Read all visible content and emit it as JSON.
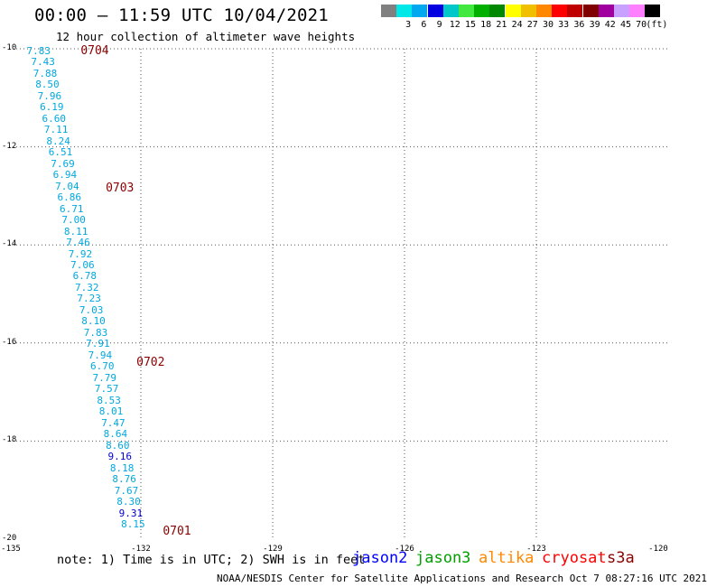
{
  "header": {
    "title": "00:00 – 11:59 UTC 10/04/2021",
    "subtitle": "12 hour collection of altimeter wave heights"
  },
  "legend": {
    "swatches": [
      {
        "color": "#808080",
        "label": ""
      },
      {
        "color": "#00e8e8",
        "label": "3"
      },
      {
        "color": "#00a8f0",
        "label": "6"
      },
      {
        "color": "#0000e0",
        "label": "9"
      },
      {
        "color": "#00c8c8",
        "label": "12"
      },
      {
        "color": "#40e840",
        "label": "15"
      },
      {
        "color": "#00b000",
        "label": "18"
      },
      {
        "color": "#008800",
        "label": "21"
      },
      {
        "color": "#ffff00",
        "label": "24"
      },
      {
        "color": "#f0c000",
        "label": "27"
      },
      {
        "color": "#ff8800",
        "label": "30"
      },
      {
        "color": "#ff0000",
        "label": "33"
      },
      {
        "color": "#c00000",
        "label": "36"
      },
      {
        "color": "#800000",
        "label": "39"
      },
      {
        "color": "#a000a0",
        "label": "42"
      },
      {
        "color": "#c8a0ff",
        "label": "45"
      },
      {
        "color": "#ff80ff",
        "label": "70"
      },
      {
        "color": "#000000",
        "label": "(ft)"
      }
    ]
  },
  "axes": {
    "y_labels": [
      "-10",
      "-12",
      "-14",
      "-16",
      "-18",
      "-20"
    ],
    "x_labels": [
      "-135",
      "-132",
      "-129",
      "-126",
      "-123",
      "-120"
    ]
  },
  "passes": [
    {
      "id": "0704",
      "lat": -10.05,
      "lon": -133.37
    },
    {
      "id": "0703",
      "lat": -12.85,
      "lon": -132.8
    },
    {
      "id": "0702",
      "lat": -16.4,
      "lon": -132.1
    },
    {
      "id": "0701",
      "lat": -19.85,
      "lon": -131.5
    }
  ],
  "measurements": [
    {
      "v": "7.83",
      "lat": -10.05,
      "lon": -134.6,
      "dark": false
    },
    {
      "v": "7.43",
      "lat": -10.28,
      "lon": -134.5,
      "dark": false
    },
    {
      "v": "7.88",
      "lat": -10.51,
      "lon": -134.45,
      "dark": false
    },
    {
      "v": "8.50",
      "lat": -10.74,
      "lon": -134.4,
      "dark": false
    },
    {
      "v": "7.96",
      "lat": -10.97,
      "lon": -134.35,
      "dark": false
    },
    {
      "v": "6.19",
      "lat": -11.2,
      "lon": -134.3,
      "dark": false
    },
    {
      "v": "6.60",
      "lat": -11.43,
      "lon": -134.25,
      "dark": false
    },
    {
      "v": "7.11",
      "lat": -11.66,
      "lon": -134.2,
      "dark": false
    },
    {
      "v": "8.24",
      "lat": -11.89,
      "lon": -134.15,
      "dark": false
    },
    {
      "v": "6.51",
      "lat": -12.12,
      "lon": -134.1,
      "dark": false
    },
    {
      "v": "7.69",
      "lat": -12.35,
      "lon": -134.05,
      "dark": false
    },
    {
      "v": "6.94",
      "lat": -12.58,
      "lon": -134.0,
      "dark": false
    },
    {
      "v": "7.04",
      "lat": -12.81,
      "lon": -133.95,
      "dark": false
    },
    {
      "v": "6.86",
      "lat": -13.04,
      "lon": -133.9,
      "dark": false
    },
    {
      "v": "6.71",
      "lat": -13.27,
      "lon": -133.85,
      "dark": false
    },
    {
      "v": "7.00",
      "lat": -13.5,
      "lon": -133.8,
      "dark": false
    },
    {
      "v": "8.11",
      "lat": -13.73,
      "lon": -133.75,
      "dark": false
    },
    {
      "v": "7.46",
      "lat": -13.96,
      "lon": -133.7,
      "dark": false
    },
    {
      "v": "7.92",
      "lat": -14.19,
      "lon": -133.65,
      "dark": false
    },
    {
      "v": "7.06",
      "lat": -14.42,
      "lon": -133.6,
      "dark": false
    },
    {
      "v": "6.78",
      "lat": -14.65,
      "lon": -133.55,
      "dark": false
    },
    {
      "v": "7.32",
      "lat": -14.88,
      "lon": -133.5,
      "dark": false
    },
    {
      "v": "7.23",
      "lat": -15.11,
      "lon": -133.45,
      "dark": false
    },
    {
      "v": "7.03",
      "lat": -15.34,
      "lon": -133.4,
      "dark": false
    },
    {
      "v": "8.10",
      "lat": -15.57,
      "lon": -133.35,
      "dark": false
    },
    {
      "v": "7.83",
      "lat": -15.8,
      "lon": -133.3,
      "dark": false
    },
    {
      "v": "7.91",
      "lat": -16.03,
      "lon": -133.25,
      "dark": false
    },
    {
      "v": "7.94",
      "lat": -16.26,
      "lon": -133.2,
      "dark": false
    },
    {
      "v": "6.70",
      "lat": -16.49,
      "lon": -133.15,
      "dark": false
    },
    {
      "v": "7.79",
      "lat": -16.72,
      "lon": -133.1,
      "dark": false
    },
    {
      "v": "7.57",
      "lat": -16.95,
      "lon": -133.05,
      "dark": false
    },
    {
      "v": "8.53",
      "lat": -17.18,
      "lon": -133.0,
      "dark": false
    },
    {
      "v": "8.01",
      "lat": -17.41,
      "lon": -132.95,
      "dark": false
    },
    {
      "v": "7.47",
      "lat": -17.64,
      "lon": -132.9,
      "dark": false
    },
    {
      "v": "8.64",
      "lat": -17.87,
      "lon": -132.85,
      "dark": false
    },
    {
      "v": "8.60",
      "lat": -18.1,
      "lon": -132.8,
      "dark": false
    },
    {
      "v": "9.16",
      "lat": -18.33,
      "lon": -132.75,
      "dark": true
    },
    {
      "v": "8.18",
      "lat": -18.56,
      "lon": -132.7,
      "dark": false
    },
    {
      "v": "8.76",
      "lat": -18.79,
      "lon": -132.65,
      "dark": false
    },
    {
      "v": "7.67",
      "lat": -19.02,
      "lon": -132.6,
      "dark": false
    },
    {
      "v": "8.30",
      "lat": -19.25,
      "lon": -132.55,
      "dark": false
    },
    {
      "v": "9.31",
      "lat": -19.48,
      "lon": -132.5,
      "dark": true
    },
    {
      "v": "8.15",
      "lat": -19.71,
      "lon": -132.45,
      "dark": false
    }
  ],
  "footer": {
    "note": "note: 1) Time is in UTC; 2) SWH is in feet",
    "satellites": [
      {
        "name": "jason2",
        "color": "#0000ff"
      },
      {
        "name": "jason3",
        "color": "#00a000"
      },
      {
        "name": "altika",
        "color": "#ff8800"
      },
      {
        "name": "cryosat",
        "color": "#ff0000"
      },
      {
        "name": "s3a",
        "color": "#8b0000"
      }
    ],
    "credit": "NOAA/NESDIS Center for Satellite Applications and Research   Oct  7 08:27:16 UTC 2021"
  }
}
